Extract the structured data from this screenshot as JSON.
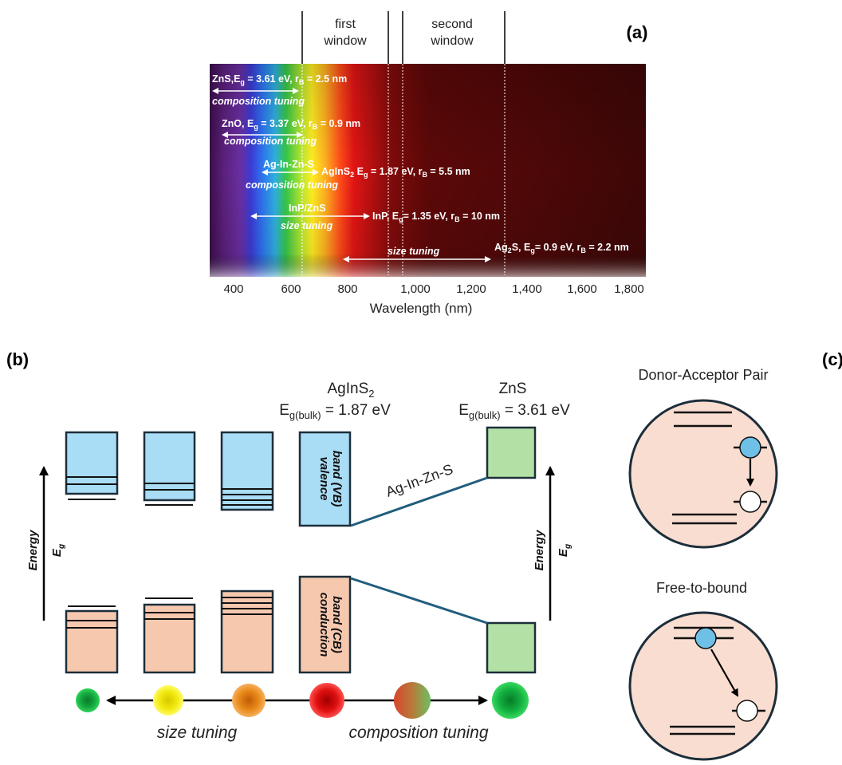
{
  "panel_a": {
    "label": "(a)",
    "window1_line1": "first",
    "window1_line2": "window",
    "window2_line1": "second",
    "window2_line2": "window",
    "x_ticks": [
      "400",
      "600",
      "800",
      "1,000",
      "1,200",
      "1,400",
      "1,600",
      "1,800"
    ],
    "x_label": "Wavelength (nm)",
    "materials": [
      {
        "name": "ZnS,E",
        "sub": "g",
        "text": " = 3.61 eV, r",
        "sub2": "B",
        "text2": " = 2.5 nm",
        "tuning": "composition tuning"
      },
      {
        "name": "ZnO, E",
        "sub": "g",
        "text": " = 3.37 eV, r",
        "sub2": "B",
        "text2": " = 0.9 nm",
        "tuning": "composition tuning"
      },
      {
        "name": "Ag-In-Zn-S",
        "tuning": "composition tuning"
      },
      {
        "name": "AgInS",
        "sub": "2",
        "text": " E",
        "sub2": "g",
        "text2": " = 1.87 eV, r",
        "sub3": "B",
        "text3": " = 5.5 nm"
      },
      {
        "name": "InP/ZnS",
        "tuning": "size tuning"
      },
      {
        "name": "InP,  E",
        "sub": "g",
        "text": "= 1.35 eV, r",
        "sub2": "B",
        "text2": " = 10 nm"
      },
      {
        "name": "Ag",
        "sub": "2",
        "text": "S, E",
        "sub2": "g",
        "text2": "= 0.9 eV, r",
        "sub3": "B",
        "text3": " = 2.2 nm",
        "tuning": "size tuning"
      }
    ]
  },
  "panel_b": {
    "label": "(b)",
    "ags_title": "AgInS",
    "ags_title_sub": "2",
    "ags_eg": "E",
    "ags_eg_sub": "g(bulk)",
    "ags_eg_val": " = 1.87 eV",
    "zns_title": "ZnS",
    "zns_eg": "E",
    "zns_eg_sub": "g(bulk)",
    "zns_eg_val": " = 3.61 eV",
    "vb_line1": "valence",
    "vb_line2": "band (VB)",
    "cb_line1": "conduction",
    "cb_line2": "band (CB)",
    "alloy_label": "Ag-In-Zn-S",
    "energy_label": "Energy",
    "eg_label": "E",
    "eg_sub": "g",
    "size_tuning": "size tuning",
    "composition_tuning": "composition tuning"
  },
  "panel_c": {
    "label": "(c)",
    "dap_title": "Donor-Acceptor Pair",
    "ftb_title": "Free-to-bound"
  },
  "colors": {
    "vb_blue": "#a9dcf5",
    "cb_peach": "#f6c8ae",
    "zns_green": "#b3e0a4",
    "circle_fill": "#f9ddd0",
    "electron": "#6fc0e6",
    "line": "#215d7d"
  }
}
